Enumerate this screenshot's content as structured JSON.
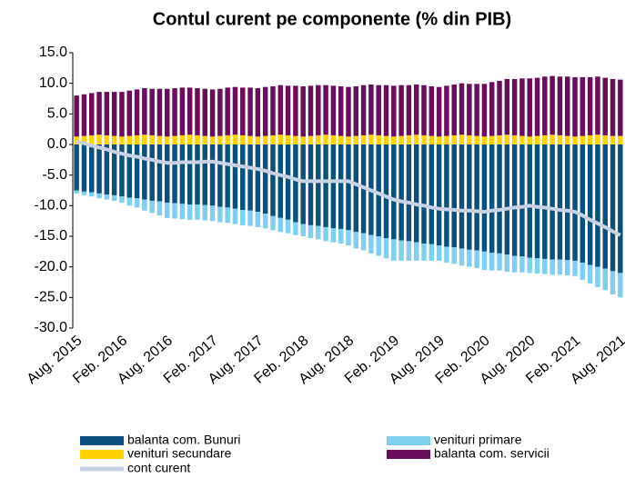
{
  "chart_data": {
    "type": "bar",
    "title": "Contul curent pe componente (% din PIB)",
    "categories": [
      "Aug. 2015",
      null,
      null,
      null,
      null,
      null,
      "Feb. 2016",
      null,
      null,
      null,
      null,
      null,
      "Aug. 2016",
      null,
      null,
      null,
      null,
      null,
      "Feb. 2017",
      null,
      null,
      null,
      null,
      null,
      "Aug. 2017",
      null,
      null,
      null,
      null,
      null,
      "Feb. 2018",
      null,
      null,
      null,
      null,
      null,
      "Aug. 2018",
      null,
      null,
      null,
      null,
      null,
      "Feb. 2019",
      null,
      null,
      null,
      null,
      null,
      "Aug. 2019",
      null,
      null,
      null,
      null,
      null,
      "Feb. 2020",
      null,
      null,
      null,
      null,
      null,
      "Aug. 2020",
      null,
      null,
      null,
      null,
      null,
      "Feb. 2021",
      null,
      null,
      null,
      null,
      null,
      "Aug. 2021"
    ],
    "series": [
      {
        "name": "balanta com. Bunuri",
        "color": "#0b4f7c",
        "values": [
          -7.5,
          -7.7,
          -7.8,
          -8.0,
          -8.2,
          -8.3,
          -8.5,
          -8.7,
          -8.8,
          -9.0,
          -9.2,
          -9.3,
          -9.5,
          -9.6,
          -9.7,
          -9.8,
          -9.8,
          -9.9,
          -10,
          -10.2,
          -10.3,
          -10.5,
          -10.7,
          -10.8,
          -11,
          -11.3,
          -11.7,
          -12,
          -12.3,
          -12.7,
          -13,
          -13.2,
          -13.3,
          -13.5,
          -13.7,
          -13.8,
          -14,
          -14.3,
          -14.5,
          -14.8,
          -15,
          -15.3,
          -15.5,
          -15.7,
          -15.8,
          -16,
          -16.2,
          -16.3,
          -16.5,
          -16.7,
          -16.8,
          -17,
          -17.2,
          -17.3,
          -17.5,
          -17.7,
          -17.8,
          -18,
          -18.2,
          -18.3,
          -18.5,
          -18.6,
          -18.7,
          -18.8,
          -18.8,
          -18.9,
          -19,
          -19.3,
          -19.7,
          -20,
          -20.3,
          -20.7,
          -21
        ]
      },
      {
        "name": "venituri primare",
        "color": "#80cef0",
        "values": [
          -0.5,
          -0.6,
          -0.7,
          -0.8,
          -0.8,
          -0.9,
          -1,
          -1.3,
          -1.5,
          -1.8,
          -2,
          -2.3,
          -2.5,
          -2.5,
          -2.5,
          -2.5,
          -2.5,
          -2.5,
          -2.5,
          -2.5,
          -2.5,
          -2.5,
          -2.5,
          -2.5,
          -2.5,
          -2.4,
          -2.3,
          -2.3,
          -2.2,
          -2.1,
          -2,
          -2.1,
          -2.2,
          -2.3,
          -2.3,
          -2.4,
          -2.5,
          -2.7,
          -2.8,
          -3,
          -3.2,
          -3.3,
          -3.5,
          -3.3,
          -3.2,
          -3,
          -2.8,
          -2.7,
          -2.5,
          -2.6,
          -2.7,
          -2.8,
          -2.8,
          -2.9,
          -3,
          -2.9,
          -2.8,
          -2.8,
          -2.7,
          -2.6,
          -2.5,
          -2.5,
          -2.5,
          -2.5,
          -2.5,
          -2.5,
          -2.5,
          -2.8,
          -3,
          -3.3,
          -3.5,
          -3.8,
          -4
        ]
      },
      {
        "name": "venituri secundare",
        "color": "#ffd200",
        "values": [
          1.3,
          1.4,
          1.5,
          1.6,
          1.5,
          1.4,
          1.3,
          1.4,
          1.5,
          1.6,
          1.5,
          1.4,
          1.3,
          1.4,
          1.5,
          1.6,
          1.5,
          1.4,
          1.3,
          1.4,
          1.5,
          1.6,
          1.5,
          1.4,
          1.3,
          1.4,
          1.5,
          1.6,
          1.5,
          1.4,
          1.3,
          1.4,
          1.5,
          1.6,
          1.5,
          1.4,
          1.3,
          1.4,
          1.5,
          1.6,
          1.5,
          1.4,
          1.3,
          1.4,
          1.5,
          1.6,
          1.5,
          1.4,
          1.3,
          1.4,
          1.5,
          1.6,
          1.5,
          1.4,
          1.3,
          1.4,
          1.5,
          1.6,
          1.5,
          1.4,
          1.3,
          1.4,
          1.5,
          1.6,
          1.5,
          1.4,
          1.3,
          1.4,
          1.5,
          1.6,
          1.5,
          1.4,
          1.4
        ]
      },
      {
        "name": "balanta com. servicii",
        "color": "#6a0d5c",
        "values": [
          6.7,
          6.8,
          6.9,
          7.0,
          7.1,
          7.2,
          7.3,
          7.4,
          7.5,
          7.6,
          7.6,
          7.7,
          7.8,
          7.8,
          7.8,
          7.7,
          7.7,
          7.7,
          7.7,
          7.7,
          7.8,
          7.8,
          7.8,
          7.9,
          7.9,
          8.0,
          8.0,
          8.1,
          8.1,
          8.2,
          8.2,
          8.2,
          8.2,
          8.1,
          8.1,
          8.1,
          8.1,
          8.1,
          8.2,
          8.2,
          8.2,
          8.3,
          8.3,
          8.3,
          8.2,
          8.2,
          8.2,
          8.1,
          8.1,
          8.2,
          8.3,
          8.4,
          8.4,
          8.5,
          8.6,
          8.8,
          8.9,
          9.1,
          9.2,
          9.4,
          9.5,
          9.5,
          9.6,
          9.6,
          9.6,
          9.7,
          9.7,
          9.6,
          9.5,
          9.5,
          9.4,
          9.3,
          9.2
        ]
      }
    ],
    "line": {
      "name": "cont curent",
      "color": "#c8d2e4",
      "values": [
        0.5,
        0.2,
        -0.2,
        -0.5,
        -0.8,
        -1.2,
        -1.5,
        -1.8,
        -2,
        -2.3,
        -2.5,
        -2.8,
        -3,
        -3,
        -2.9,
        -2.9,
        -2.9,
        -2.8,
        -2.8,
        -3,
        -3.2,
        -3.4,
        -3.6,
        -3.8,
        -4,
        -4.3,
        -4.7,
        -5,
        -5.3,
        -5.7,
        -6,
        -6,
        -6,
        -6,
        -6,
        -6,
        -6,
        -6.5,
        -7,
        -7.5,
        -8,
        -8.5,
        -9,
        -9.3,
        -9.5,
        -9.8,
        -10,
        -10.3,
        -10.5,
        -10.6,
        -10.7,
        -10.8,
        -10.8,
        -10.9,
        -11,
        -10.8,
        -10.7,
        -10.5,
        -10.3,
        -10.2,
        -10,
        -10.2,
        -10.3,
        -10.5,
        -10.7,
        -10.8,
        -11,
        -11.6,
        -12.3,
        -12.9,
        -13.5,
        -14.2,
        -14.8
      ]
    },
    "ylim": [
      -30,
      15
    ],
    "yticks": [
      {
        "value": 15,
        "label": "15.0"
      },
      {
        "value": 10,
        "label": "10.0"
      },
      {
        "value": 5,
        "label": "5.0"
      },
      {
        "value": 0,
        "label": "0.0"
      },
      {
        "value": -5,
        "label": "-5.0"
      },
      {
        "value": -10,
        "label": "-10.0"
      },
      {
        "value": -15,
        "label": "-15.0"
      },
      {
        "value": -20,
        "label": "-20.0"
      },
      {
        "value": -25,
        "label": "-25.0"
      },
      {
        "value": -30,
        "label": "-30.0"
      }
    ],
    "grid": false
  }
}
